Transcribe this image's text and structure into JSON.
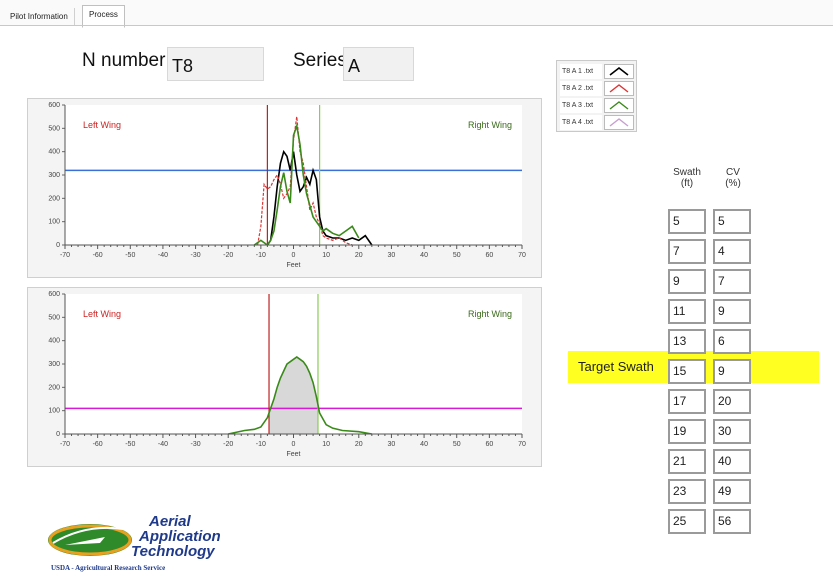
{
  "tabs": [
    {
      "label": "Pilot Information"
    },
    {
      "label": "Process"
    }
  ],
  "header": {
    "n_number_label": "N number",
    "n_number_value": "T8",
    "series_label": "Series",
    "series_value": "A"
  },
  "legend": [
    {
      "name": "T8 A 1 .txt",
      "color": "#000000"
    },
    {
      "name": "T8 A 2 .txt",
      "color": "#dd3333"
    },
    {
      "name": "T8 A 3 .txt",
      "color": "#3a8a1a"
    },
    {
      "name": "T8 A 4 .txt",
      "color": "#c79fd0"
    }
  ],
  "chart_data": [
    {
      "type": "line",
      "xlabel": "Feet",
      "xlim": [
        -70,
        70
      ],
      "ylim": [
        0,
        600
      ],
      "xticks": [
        -70,
        -60,
        -50,
        -40,
        -30,
        -20,
        -10,
        0,
        10,
        20,
        30,
        40,
        50,
        60,
        70
      ],
      "yticks": [
        0,
        100,
        200,
        300,
        400,
        500,
        600
      ],
      "annotations": {
        "left": "Left Wing",
        "right": "Right Wing"
      },
      "hline": {
        "y": 320,
        "color": "#3a6fd8"
      },
      "vlines": [
        {
          "x": -8,
          "color": "#bb2222"
        },
        {
          "x": 8,
          "color": "#88cc55"
        }
      ],
      "series": [
        {
          "name": "T8 A 1 .txt",
          "color": "#000000",
          "x": [
            -8,
            -7,
            -6,
            -5,
            -4,
            -3,
            -2,
            -1,
            0,
            1,
            2,
            3,
            4,
            5,
            6,
            7,
            8,
            9,
            10,
            12,
            14,
            16,
            18,
            20,
            22,
            24
          ],
          "y": [
            0,
            20,
            120,
            250,
            350,
            400,
            380,
            320,
            400,
            300,
            230,
            250,
            290,
            260,
            320,
            280,
            120,
            60,
            40,
            30,
            30,
            20,
            30,
            20,
            40,
            0
          ]
        },
        {
          "name": "T8 A 2 .txt",
          "color": "#dd3333",
          "x": [
            -11,
            -10,
            -9,
            -8,
            -7,
            -6,
            -5,
            -4,
            -3,
            -2,
            -1,
            0,
            1,
            2,
            3,
            4,
            5,
            6,
            7,
            8,
            9,
            10,
            12,
            14,
            16,
            18
          ],
          "y": [
            0,
            80,
            260,
            240,
            250,
            280,
            300,
            260,
            200,
            220,
            250,
            450,
            550,
            400,
            350,
            250,
            150,
            180,
            120,
            90,
            40,
            30,
            20,
            30,
            10,
            0
          ]
        },
        {
          "name": "T8 A 3 .txt",
          "color": "#3a8a1a",
          "x": [
            -12,
            -10,
            -8,
            -7,
            -6,
            -5,
            -4,
            -3,
            -2,
            -1,
            0,
            1,
            2,
            3,
            4,
            5,
            6,
            7,
            8,
            9,
            10,
            12,
            14,
            16,
            18,
            20
          ],
          "y": [
            0,
            20,
            0,
            20,
            60,
            150,
            250,
            310,
            230,
            180,
            470,
            510,
            430,
            300,
            220,
            170,
            120,
            100,
            80,
            60,
            70,
            50,
            40,
            60,
            80,
            30
          ]
        },
        {
          "name": "T8 A 4 .txt",
          "color": "#c79fd0",
          "x": [],
          "y": []
        }
      ]
    },
    {
      "type": "area",
      "xlabel": "Feet",
      "xlim": [
        -70,
        70
      ],
      "ylim": [
        0,
        600
      ],
      "xticks": [
        -70,
        -60,
        -50,
        -40,
        -30,
        -20,
        -10,
        0,
        10,
        20,
        30,
        40,
        50,
        60,
        70
      ],
      "yticks": [
        0,
        100,
        200,
        300,
        400,
        500,
        600
      ],
      "annotations": {
        "left": "Left Wing",
        "right": "Right Wing"
      },
      "hline": {
        "y": 110,
        "color": "#d81ad8"
      },
      "vlines": [
        {
          "x": -7.5,
          "color": "#bb2222"
        },
        {
          "x": 7.5,
          "color": "#88cc55"
        }
      ],
      "series": [
        {
          "name": "Average",
          "color": "#3a8a1a",
          "x": [
            -20,
            -15,
            -12,
            -10,
            -8,
            -6,
            -5,
            -4,
            -3,
            -2,
            -1,
            0,
            1,
            2,
            3,
            4,
            5,
            6,
            7,
            8,
            10,
            12,
            15,
            20,
            24
          ],
          "y": [
            0,
            15,
            20,
            30,
            70,
            150,
            200,
            240,
            270,
            300,
            310,
            320,
            330,
            320,
            310,
            290,
            260,
            220,
            160,
            90,
            40,
            25,
            15,
            10,
            0
          ]
        }
      ]
    }
  ],
  "swath_table": {
    "swath_header": "Swath\n(ft)",
    "cv_header": "CV\n(%)",
    "rows": [
      {
        "swath": "5",
        "cv": "5"
      },
      {
        "swath": "7",
        "cv": "4"
      },
      {
        "swath": "9",
        "cv": "7"
      },
      {
        "swath": "11",
        "cv": "9"
      },
      {
        "swath": "13",
        "cv": "6"
      },
      {
        "swath": "15",
        "cv": "9"
      },
      {
        "swath": "17",
        "cv": "20"
      },
      {
        "swath": "19",
        "cv": "30"
      },
      {
        "swath": "21",
        "cv": "40"
      },
      {
        "swath": "23",
        "cv": "49"
      },
      {
        "swath": "25",
        "cv": "56"
      }
    ],
    "target_label": "Target Swath",
    "highlight_color": "#ffff22"
  },
  "logo": {
    "line1": "Aerial",
    "line2": "Application",
    "line3": "Technology",
    "tagline": "USDA - Agricultural Research Service"
  }
}
